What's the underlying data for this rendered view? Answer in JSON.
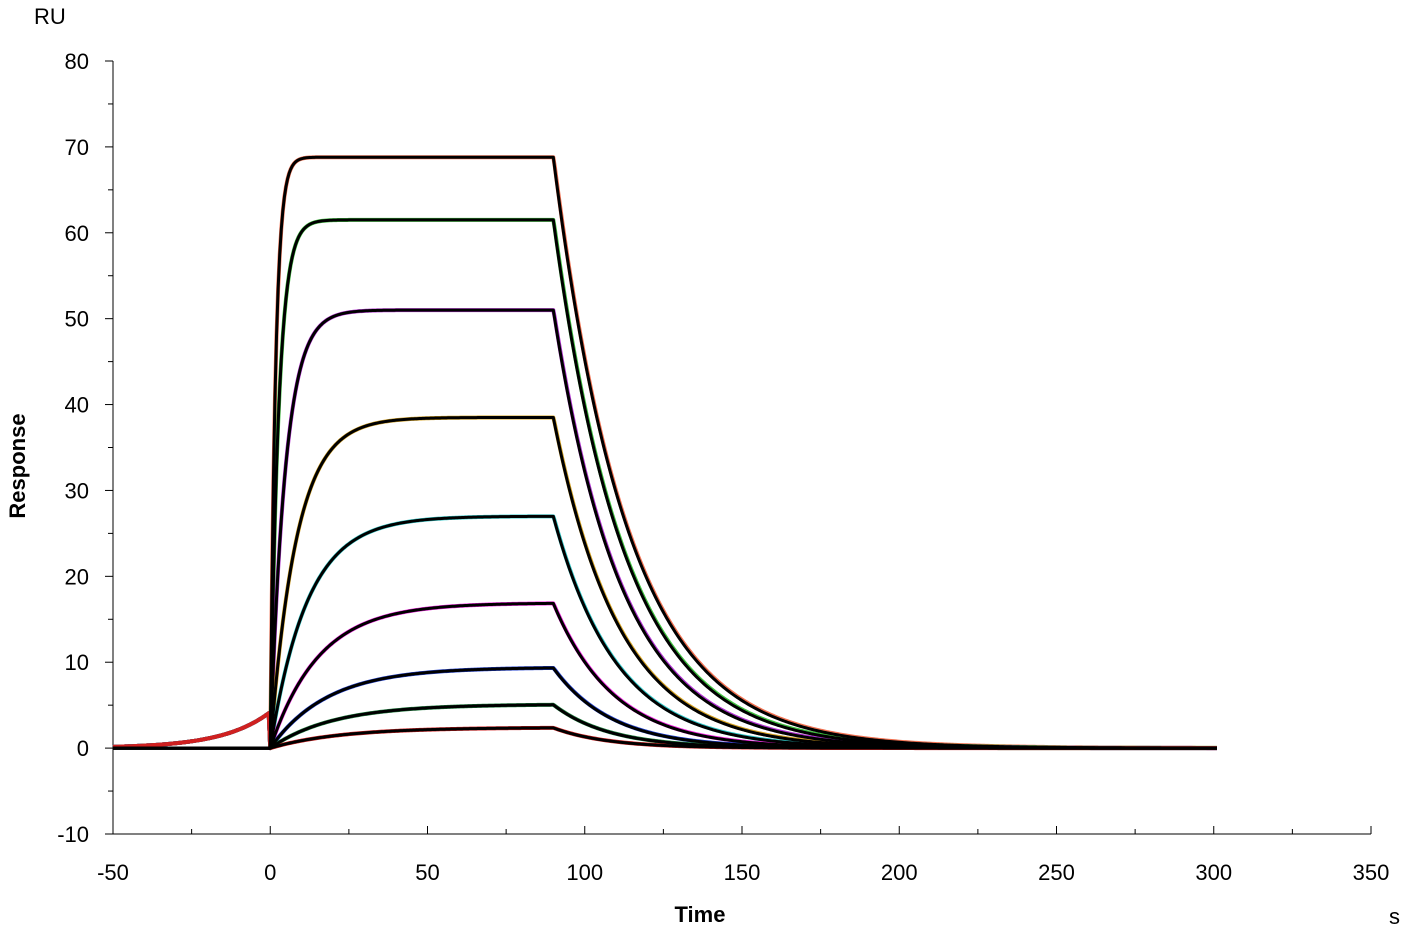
{
  "chart_data": {
    "type": "line",
    "title": "",
    "xlabel": "Time",
    "ylabel": "Response",
    "x_unit": "s",
    "y_unit": "RU",
    "xlim": [
      -50,
      350
    ],
    "ylim": [
      -10,
      80
    ],
    "x_ticks": [
      -50,
      0,
      50,
      100,
      150,
      200,
      250,
      300,
      350
    ],
    "y_ticks": [
      -10,
      0,
      10,
      20,
      30,
      40,
      50,
      60,
      70,
      80
    ],
    "x_tick_labels": [
      "-50",
      "0",
      "50",
      "100",
      "150",
      "200",
      "250",
      "300",
      "350"
    ],
    "y_tick_labels": [
      "-10",
      "0",
      "10",
      "20",
      "30",
      "40",
      "50",
      "60",
      "70",
      "80"
    ],
    "grid": false,
    "legend": "none",
    "x_start": -50,
    "injection_start": 0,
    "injection_end": 90,
    "x_end": 301,
    "fit_color": "#000000",
    "series": [
      {
        "color": "#f07050",
        "plateau": 68.8,
        "kon_rate": 0.6,
        "koff_rate": 0.042
      },
      {
        "color": "#40c040",
        "plateau": 61.5,
        "kon_rate": 0.38,
        "koff_rate": 0.044
      },
      {
        "color": "#b030d0",
        "plateau": 51.0,
        "kon_rate": 0.21,
        "koff_rate": 0.046
      },
      {
        "color": "#d4a020",
        "plateau": 38.5,
        "kon_rate": 0.12,
        "koff_rate": 0.048
      },
      {
        "color": "#30c8c8",
        "plateau": 27.0,
        "kon_rate": 0.085,
        "koff_rate": 0.05
      },
      {
        "color": "#f020e0",
        "plateau": 16.9,
        "kon_rate": 0.065,
        "koff_rate": 0.052
      },
      {
        "color": "#2040d0",
        "plateau": 9.4,
        "kon_rate": 0.055,
        "koff_rate": 0.054
      },
      {
        "color": "#208040",
        "plateau": 5.1,
        "kon_rate": 0.05,
        "koff_rate": 0.056
      },
      {
        "color": "#d02020",
        "plateau": 2.4,
        "kon_rate": 0.045,
        "koff_rate": 0.058
      }
    ]
  }
}
